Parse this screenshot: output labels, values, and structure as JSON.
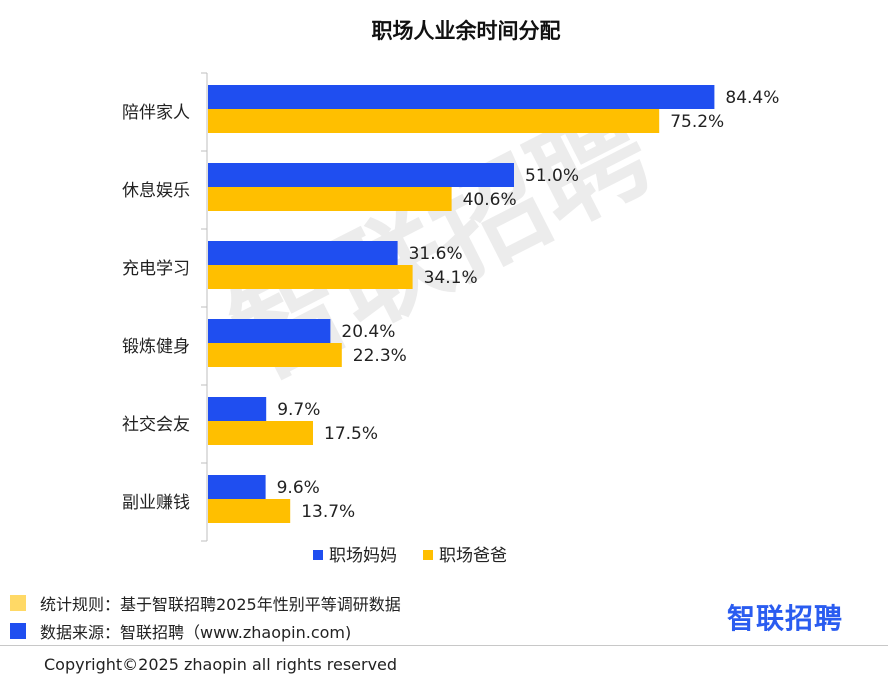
{
  "chart_data": {
    "type": "bar",
    "orientation": "horizontal",
    "title": "职场人业余时间分配",
    "categories": [
      "陪伴家人",
      "休息娱乐",
      "充电学习",
      "锻炼健身",
      "社交会友",
      "副业赚钱"
    ],
    "series": [
      {
        "name": "职场妈妈",
        "color": "#1f4ef0",
        "values": [
          84.4,
          51.0,
          31.6,
          20.4,
          9.7,
          9.6
        ],
        "labels": [
          "84.4%",
          "51.0%",
          "31.6%",
          "20.4%",
          "9.7%",
          "9.6%"
        ]
      },
      {
        "name": "职场爸爸",
        "color": "#ffbf00",
        "values": [
          75.2,
          40.6,
          34.1,
          22.3,
          17.5,
          13.7
        ],
        "labels": [
          "75.2%",
          "40.6%",
          "34.1%",
          "22.3%",
          "17.5%",
          "13.7%"
        ]
      }
    ],
    "xlim": [
      0,
      100
    ],
    "legend_position": "bottom-center"
  },
  "watermark": "智联招聘",
  "notes": {
    "rule_color": "#ffd966",
    "rule": "统计规则：基于智联招聘2025年性别平等调研数据",
    "source_color": "#1f4ef0",
    "source": "数据来源：智联招聘（www.zhaopin.com)"
  },
  "logo": "智联招聘",
  "copyright": "Copyright©2025 zhaopin all rights reserved"
}
